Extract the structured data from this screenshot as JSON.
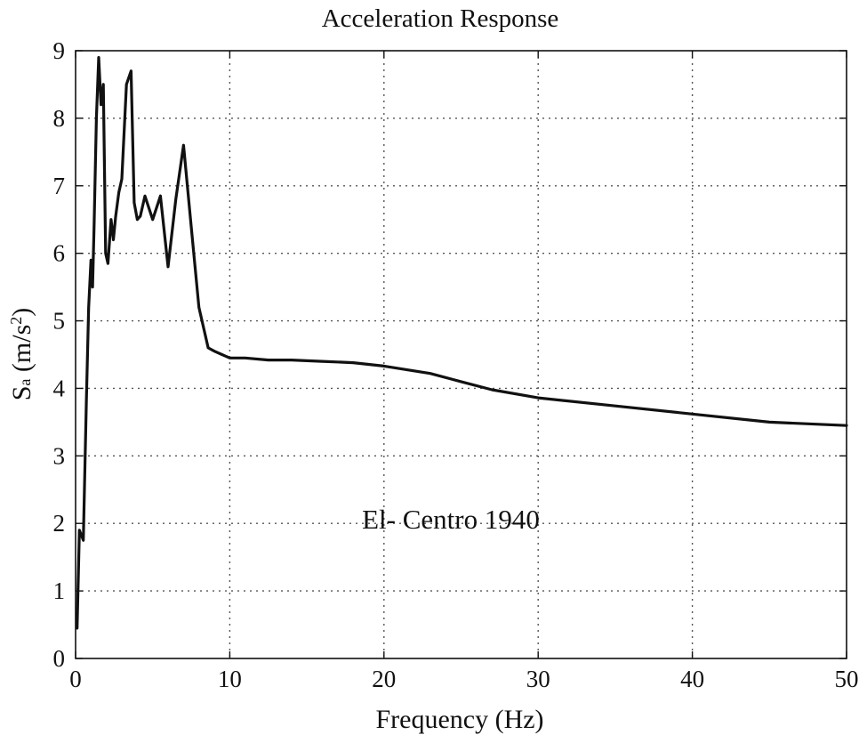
{
  "chart_data": {
    "type": "line",
    "title": "Acceleration Response",
    "xlabel": "Frequency (Hz)",
    "ylabel": {
      "main": "S",
      "sub": "a",
      "unit_open": " (m/s",
      "unit_sup": "2",
      "unit_close": ")"
    },
    "xlim": [
      0,
      50
    ],
    "ylim": [
      0,
      9
    ],
    "xticks": [
      0,
      10,
      20,
      30,
      40,
      50
    ],
    "yticks": [
      0,
      1,
      2,
      3,
      4,
      5,
      6,
      7,
      8,
      9
    ],
    "xtick_labels": [
      "0",
      "10",
      "20",
      "30",
      "40",
      "50"
    ],
    "ytick_labels": [
      "0",
      "1",
      "2",
      "3",
      "4",
      "5",
      "6",
      "7",
      "8",
      "9"
    ],
    "grid": true,
    "annotation": "El- Centro 1940",
    "series": [
      {
        "color": "#111111",
        "x": [
          0.1,
          0.25,
          0.5,
          0.7,
          0.85,
          1.0,
          1.1,
          1.2,
          1.35,
          1.5,
          1.65,
          1.8,
          1.95,
          2.1,
          2.3,
          2.45,
          2.6,
          2.8,
          3.0,
          3.3,
          3.6,
          3.8,
          4.0,
          4.2,
          4.5,
          5.0,
          5.5,
          6.0,
          6.5,
          7.0,
          7.5,
          8.0,
          8.3,
          8.6,
          9.0,
          9.5,
          10.0,
          11.0,
          12.5,
          14.0,
          16.0,
          18.0,
          20.0,
          23.0,
          25.0,
          27.0,
          30.0,
          35.0,
          40.0,
          45.0,
          50.0
        ],
        "y": [
          0.45,
          1.9,
          1.75,
          3.8,
          5.2,
          5.9,
          5.5,
          6.4,
          8.0,
          8.9,
          8.2,
          8.5,
          6.0,
          5.85,
          6.5,
          6.2,
          6.55,
          6.9,
          7.1,
          8.5,
          8.7,
          6.75,
          6.5,
          6.55,
          6.85,
          6.5,
          6.85,
          5.8,
          6.8,
          7.6,
          6.4,
          5.2,
          4.9,
          4.6,
          4.55,
          4.5,
          4.45,
          4.45,
          4.42,
          4.42,
          4.4,
          4.38,
          4.33,
          4.22,
          4.1,
          3.98,
          3.86,
          3.74,
          3.62,
          3.5,
          3.45
        ]
      }
    ]
  }
}
